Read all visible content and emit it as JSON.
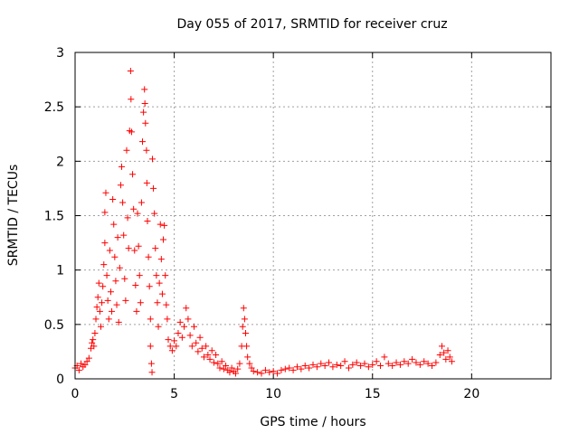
{
  "chart_data": {
    "type": "scatter",
    "title": "Day 055 of 2017, SRMTID for receiver cruz",
    "xlabel": "GPS time / hours",
    "ylabel": "SRMTID / TECUs",
    "xlim": [
      0,
      24
    ],
    "ylim": [
      0,
      3
    ],
    "x_ticks": [
      0,
      5,
      10,
      15,
      20
    ],
    "x_tick_labels": [
      "0",
      "5",
      "10",
      "15",
      "20"
    ],
    "y_ticks": [
      0,
      0.5,
      1,
      1.5,
      2,
      2.5,
      3
    ],
    "y_tick_labels": [
      "0",
      "0.5",
      "1",
      "1.5",
      "2",
      "2.5",
      "3"
    ],
    "grid": true,
    "marker": "+",
    "series": [
      {
        "name": "SRMTID",
        "color": "#ff0000",
        "points": [
          [
            0.0,
            0.1
          ],
          [
            0.1,
            0.12
          ],
          [
            0.2,
            0.08
          ],
          [
            0.3,
            0.14
          ],
          [
            0.4,
            0.11
          ],
          [
            0.5,
            0.13
          ],
          [
            0.6,
            0.16
          ],
          [
            0.7,
            0.19
          ],
          [
            0.8,
            0.28
          ],
          [
            0.85,
            0.33
          ],
          [
            0.9,
            0.36
          ],
          [
            0.95,
            0.3
          ],
          [
            1.0,
            0.42
          ],
          [
            1.05,
            0.55
          ],
          [
            1.1,
            0.66
          ],
          [
            1.15,
            0.75
          ],
          [
            1.2,
            0.88
          ],
          [
            1.25,
            0.62
          ],
          [
            1.3,
            0.48
          ],
          [
            1.35,
            0.7
          ],
          [
            1.4,
            0.85
          ],
          [
            1.45,
            1.05
          ],
          [
            1.5,
            1.25
          ],
          [
            1.5,
            1.53
          ],
          [
            1.55,
            1.71
          ],
          [
            1.6,
            0.95
          ],
          [
            1.65,
            0.72
          ],
          [
            1.7,
            0.55
          ],
          [
            1.75,
            1.18
          ],
          [
            1.8,
            0.8
          ],
          [
            1.85,
            0.62
          ],
          [
            1.9,
            1.65
          ],
          [
            1.95,
            1.42
          ],
          [
            2.0,
            1.12
          ],
          [
            2.05,
            0.9
          ],
          [
            2.1,
            0.68
          ],
          [
            2.15,
            1.3
          ],
          [
            2.2,
            0.52
          ],
          [
            2.25,
            1.02
          ],
          [
            2.3,
            1.78
          ],
          [
            2.35,
            1.95
          ],
          [
            2.4,
            1.62
          ],
          [
            2.45,
            1.32
          ],
          [
            2.5,
            0.92
          ],
          [
            2.55,
            0.72
          ],
          [
            2.6,
            2.1
          ],
          [
            2.65,
            1.48
          ],
          [
            2.7,
            1.2
          ],
          [
            2.75,
            2.28
          ],
          [
            2.8,
            2.83
          ],
          [
            2.82,
            2.57
          ],
          [
            2.85,
            2.27
          ],
          [
            2.9,
            1.88
          ],
          [
            2.95,
            1.56
          ],
          [
            3.0,
            1.18
          ],
          [
            3.05,
            0.86
          ],
          [
            3.1,
            0.62
          ],
          [
            3.15,
            1.52
          ],
          [
            3.2,
            1.22
          ],
          [
            3.25,
            0.95
          ],
          [
            3.3,
            0.7
          ],
          [
            3.35,
            1.62
          ],
          [
            3.4,
            2.18
          ],
          [
            3.45,
            2.45
          ],
          [
            3.5,
            2.66
          ],
          [
            3.52,
            2.53
          ],
          [
            3.55,
            2.35
          ],
          [
            3.6,
            2.1
          ],
          [
            3.62,
            1.8
          ],
          [
            3.65,
            1.45
          ],
          [
            3.7,
            1.12
          ],
          [
            3.75,
            0.85
          ],
          [
            3.8,
            0.55
          ],
          [
            3.8,
            0.3
          ],
          [
            3.85,
            0.14
          ],
          [
            3.88,
            0.06
          ],
          [
            3.9,
            2.02
          ],
          [
            3.95,
            1.75
          ],
          [
            4.0,
            1.52
          ],
          [
            4.05,
            1.2
          ],
          [
            4.1,
            0.95
          ],
          [
            4.15,
            0.7
          ],
          [
            4.2,
            0.48
          ],
          [
            4.25,
            0.88
          ],
          [
            4.3,
            1.42
          ],
          [
            4.35,
            1.1
          ],
          [
            4.4,
            0.78
          ],
          [
            4.45,
            1.28
          ],
          [
            4.5,
            1.41
          ],
          [
            4.55,
            0.95
          ],
          [
            4.6,
            0.68
          ],
          [
            4.65,
            0.55
          ],
          [
            4.7,
            0.36
          ],
          [
            4.8,
            0.3
          ],
          [
            4.9,
            0.26
          ],
          [
            5.0,
            0.35
          ],
          [
            5.1,
            0.3
          ],
          [
            5.2,
            0.42
          ],
          [
            5.3,
            0.52
          ],
          [
            5.4,
            0.38
          ],
          [
            5.5,
            0.48
          ],
          [
            5.6,
            0.65
          ],
          [
            5.7,
            0.55
          ],
          [
            5.8,
            0.4
          ],
          [
            5.9,
            0.3
          ],
          [
            6.0,
            0.48
          ],
          [
            6.1,
            0.33
          ],
          [
            6.2,
            0.25
          ],
          [
            6.3,
            0.38
          ],
          [
            6.4,
            0.28
          ],
          [
            6.5,
            0.2
          ],
          [
            6.6,
            0.3
          ],
          [
            6.7,
            0.22
          ],
          [
            6.8,
            0.18
          ],
          [
            6.9,
            0.26
          ],
          [
            7.0,
            0.15
          ],
          [
            7.1,
            0.22
          ],
          [
            7.2,
            0.14
          ],
          [
            7.3,
            0.1
          ],
          [
            7.4,
            0.16
          ],
          [
            7.5,
            0.09
          ],
          [
            7.6,
            0.12
          ],
          [
            7.7,
            0.08
          ],
          [
            7.8,
            0.06
          ],
          [
            7.9,
            0.1
          ],
          [
            8.0,
            0.07
          ],
          [
            8.1,
            0.05
          ],
          [
            8.2,
            0.09
          ],
          [
            8.3,
            0.14
          ],
          [
            8.4,
            0.3
          ],
          [
            8.45,
            0.48
          ],
          [
            8.5,
            0.65
          ],
          [
            8.55,
            0.55
          ],
          [
            8.6,
            0.42
          ],
          [
            8.65,
            0.3
          ],
          [
            8.7,
            0.2
          ],
          [
            8.8,
            0.14
          ],
          [
            8.9,
            0.1
          ],
          [
            9.0,
            0.07
          ],
          [
            9.2,
            0.06
          ],
          [
            9.4,
            0.05
          ],
          [
            9.6,
            0.08
          ],
          [
            9.8,
            0.06
          ],
          [
            10.0,
            0.07
          ],
          [
            10.2,
            0.05
          ],
          [
            10.4,
            0.08
          ],
          [
            10.6,
            0.09
          ],
          [
            10.8,
            0.1
          ],
          [
            11.0,
            0.08
          ],
          [
            11.2,
            0.11
          ],
          [
            11.4,
            0.09
          ],
          [
            11.6,
            0.12
          ],
          [
            11.8,
            0.1
          ],
          [
            12.0,
            0.13
          ],
          [
            12.2,
            0.11
          ],
          [
            12.4,
            0.14
          ],
          [
            12.6,
            0.12
          ],
          [
            12.8,
            0.15
          ],
          [
            13.0,
            0.11
          ],
          [
            13.2,
            0.13
          ],
          [
            13.4,
            0.12
          ],
          [
            13.6,
            0.16
          ],
          [
            13.8,
            0.1
          ],
          [
            14.0,
            0.13
          ],
          [
            14.2,
            0.15
          ],
          [
            14.4,
            0.12
          ],
          [
            14.6,
            0.14
          ],
          [
            14.8,
            0.11
          ],
          [
            15.0,
            0.13
          ],
          [
            15.2,
            0.16
          ],
          [
            15.4,
            0.12
          ],
          [
            15.6,
            0.2
          ],
          [
            15.8,
            0.14
          ],
          [
            16.0,
            0.12
          ],
          [
            16.2,
            0.15
          ],
          [
            16.4,
            0.13
          ],
          [
            16.6,
            0.16
          ],
          [
            16.8,
            0.14
          ],
          [
            17.0,
            0.18
          ],
          [
            17.2,
            0.15
          ],
          [
            17.4,
            0.13
          ],
          [
            17.6,
            0.16
          ],
          [
            17.8,
            0.14
          ],
          [
            18.0,
            0.12
          ],
          [
            18.2,
            0.15
          ],
          [
            18.4,
            0.22
          ],
          [
            18.5,
            0.3
          ],
          [
            18.6,
            0.24
          ],
          [
            18.7,
            0.18
          ],
          [
            18.8,
            0.26
          ],
          [
            18.9,
            0.2
          ],
          [
            19.0,
            0.16
          ]
        ]
      }
    ]
  }
}
